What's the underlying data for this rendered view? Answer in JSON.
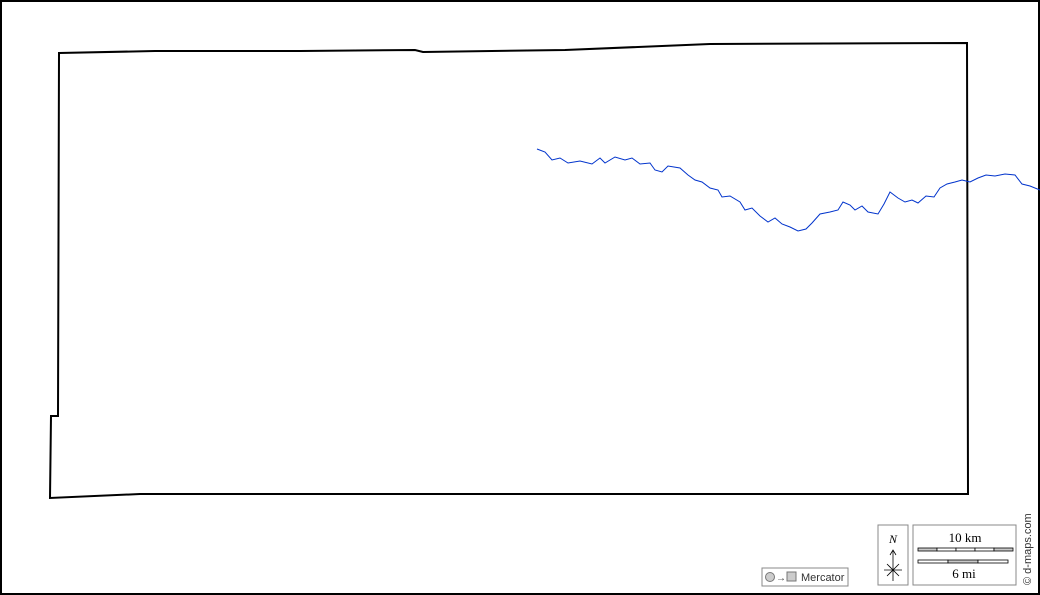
{
  "map": {
    "projection_label": "Mercator",
    "north_label": "N",
    "scale_km_label": "10 km",
    "scale_mi_label": "6 mi",
    "credit": "© d-maps.com",
    "colors": {
      "border": "#000000",
      "river": "#0033cc",
      "scale_fill": "#c8c8c8"
    }
  }
}
